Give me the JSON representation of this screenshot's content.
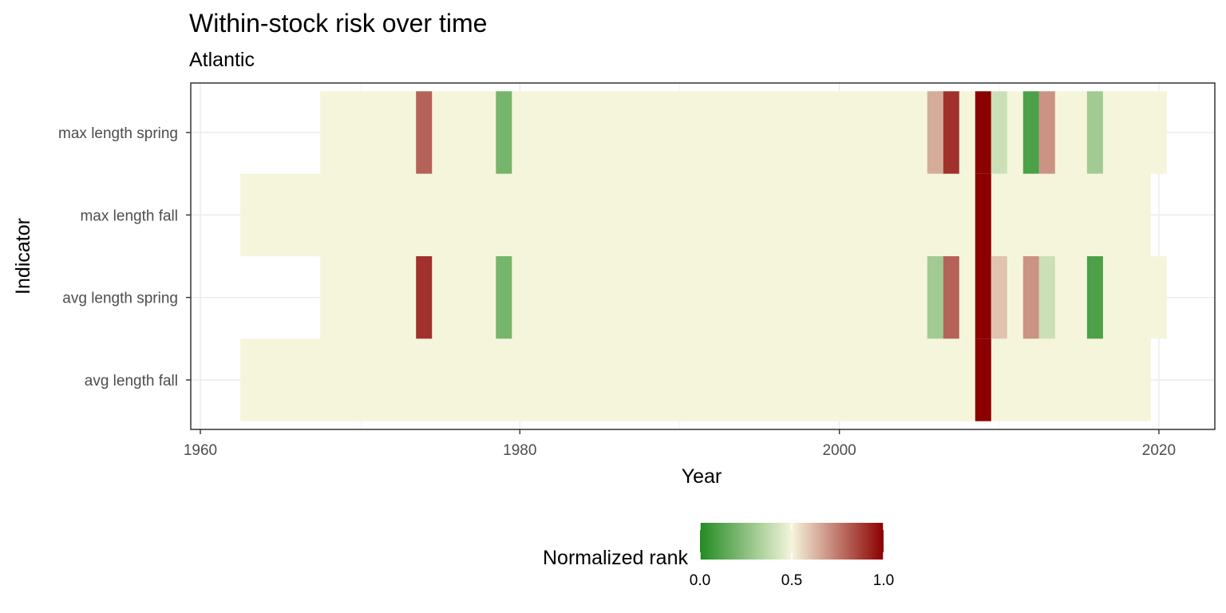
{
  "chart_data": {
    "type": "heatmap",
    "title": "Within-stock risk over time",
    "subtitle": "Atlantic",
    "xlabel": "Year",
    "ylabel": "Indicator",
    "xlim": [
      1959.4,
      2023.5
    ],
    "x_ticks": [
      1960,
      1980,
      2000,
      2020
    ],
    "x_tick_labels": [
      "1960",
      "1980",
      "2000",
      "2020"
    ],
    "grid": true,
    "indicators": [
      "max length spring",
      "max length fall",
      "avg length spring",
      "avg length fall"
    ],
    "baseline_value": 0.5,
    "series": [
      {
        "name": "max length spring",
        "year_range": [
          1968,
          2020
        ],
        "highlights": [
          {
            "year": 1974,
            "value": 0.8
          },
          {
            "year": 1979,
            "value": 0.2
          },
          {
            "year": 2006,
            "value": 0.65
          },
          {
            "year": 2007,
            "value": 0.9
          },
          {
            "year": 2009,
            "value": 1.0
          },
          {
            "year": 2010,
            "value": 0.4
          },
          {
            "year": 2012,
            "value": 0.1
          },
          {
            "year": 2013,
            "value": 0.7
          },
          {
            "year": 2016,
            "value": 0.3
          }
        ]
      },
      {
        "name": "max length fall",
        "year_range": [
          1963,
          2019
        ],
        "highlights": [
          {
            "year": 2009,
            "value": 1.0
          }
        ]
      },
      {
        "name": "avg length spring",
        "year_range": [
          1968,
          2020
        ],
        "highlights": [
          {
            "year": 1974,
            "value": 0.9
          },
          {
            "year": 1979,
            "value": 0.2
          },
          {
            "year": 2006,
            "value": 0.3
          },
          {
            "year": 2007,
            "value": 0.8
          },
          {
            "year": 2009,
            "value": 1.0
          },
          {
            "year": 2010,
            "value": 0.6
          },
          {
            "year": 2012,
            "value": 0.7
          },
          {
            "year": 2013,
            "value": 0.4
          },
          {
            "year": 2016,
            "value": 0.1
          }
        ]
      },
      {
        "name": "avg length fall",
        "year_range": [
          1963,
          2019
        ],
        "highlights": [
          {
            "year": 2009,
            "value": 1.0
          }
        ]
      }
    ],
    "legend": {
      "title": "Normalized rank",
      "position": "bottom",
      "range": [
        0,
        1
      ],
      "midpoint": 0.5,
      "tick_labels": [
        "0.0",
        "0.5",
        "1.0"
      ],
      "colors": {
        "low": "#228B22",
        "mid": "#F5F5DC",
        "high": "#8B0000"
      }
    }
  }
}
